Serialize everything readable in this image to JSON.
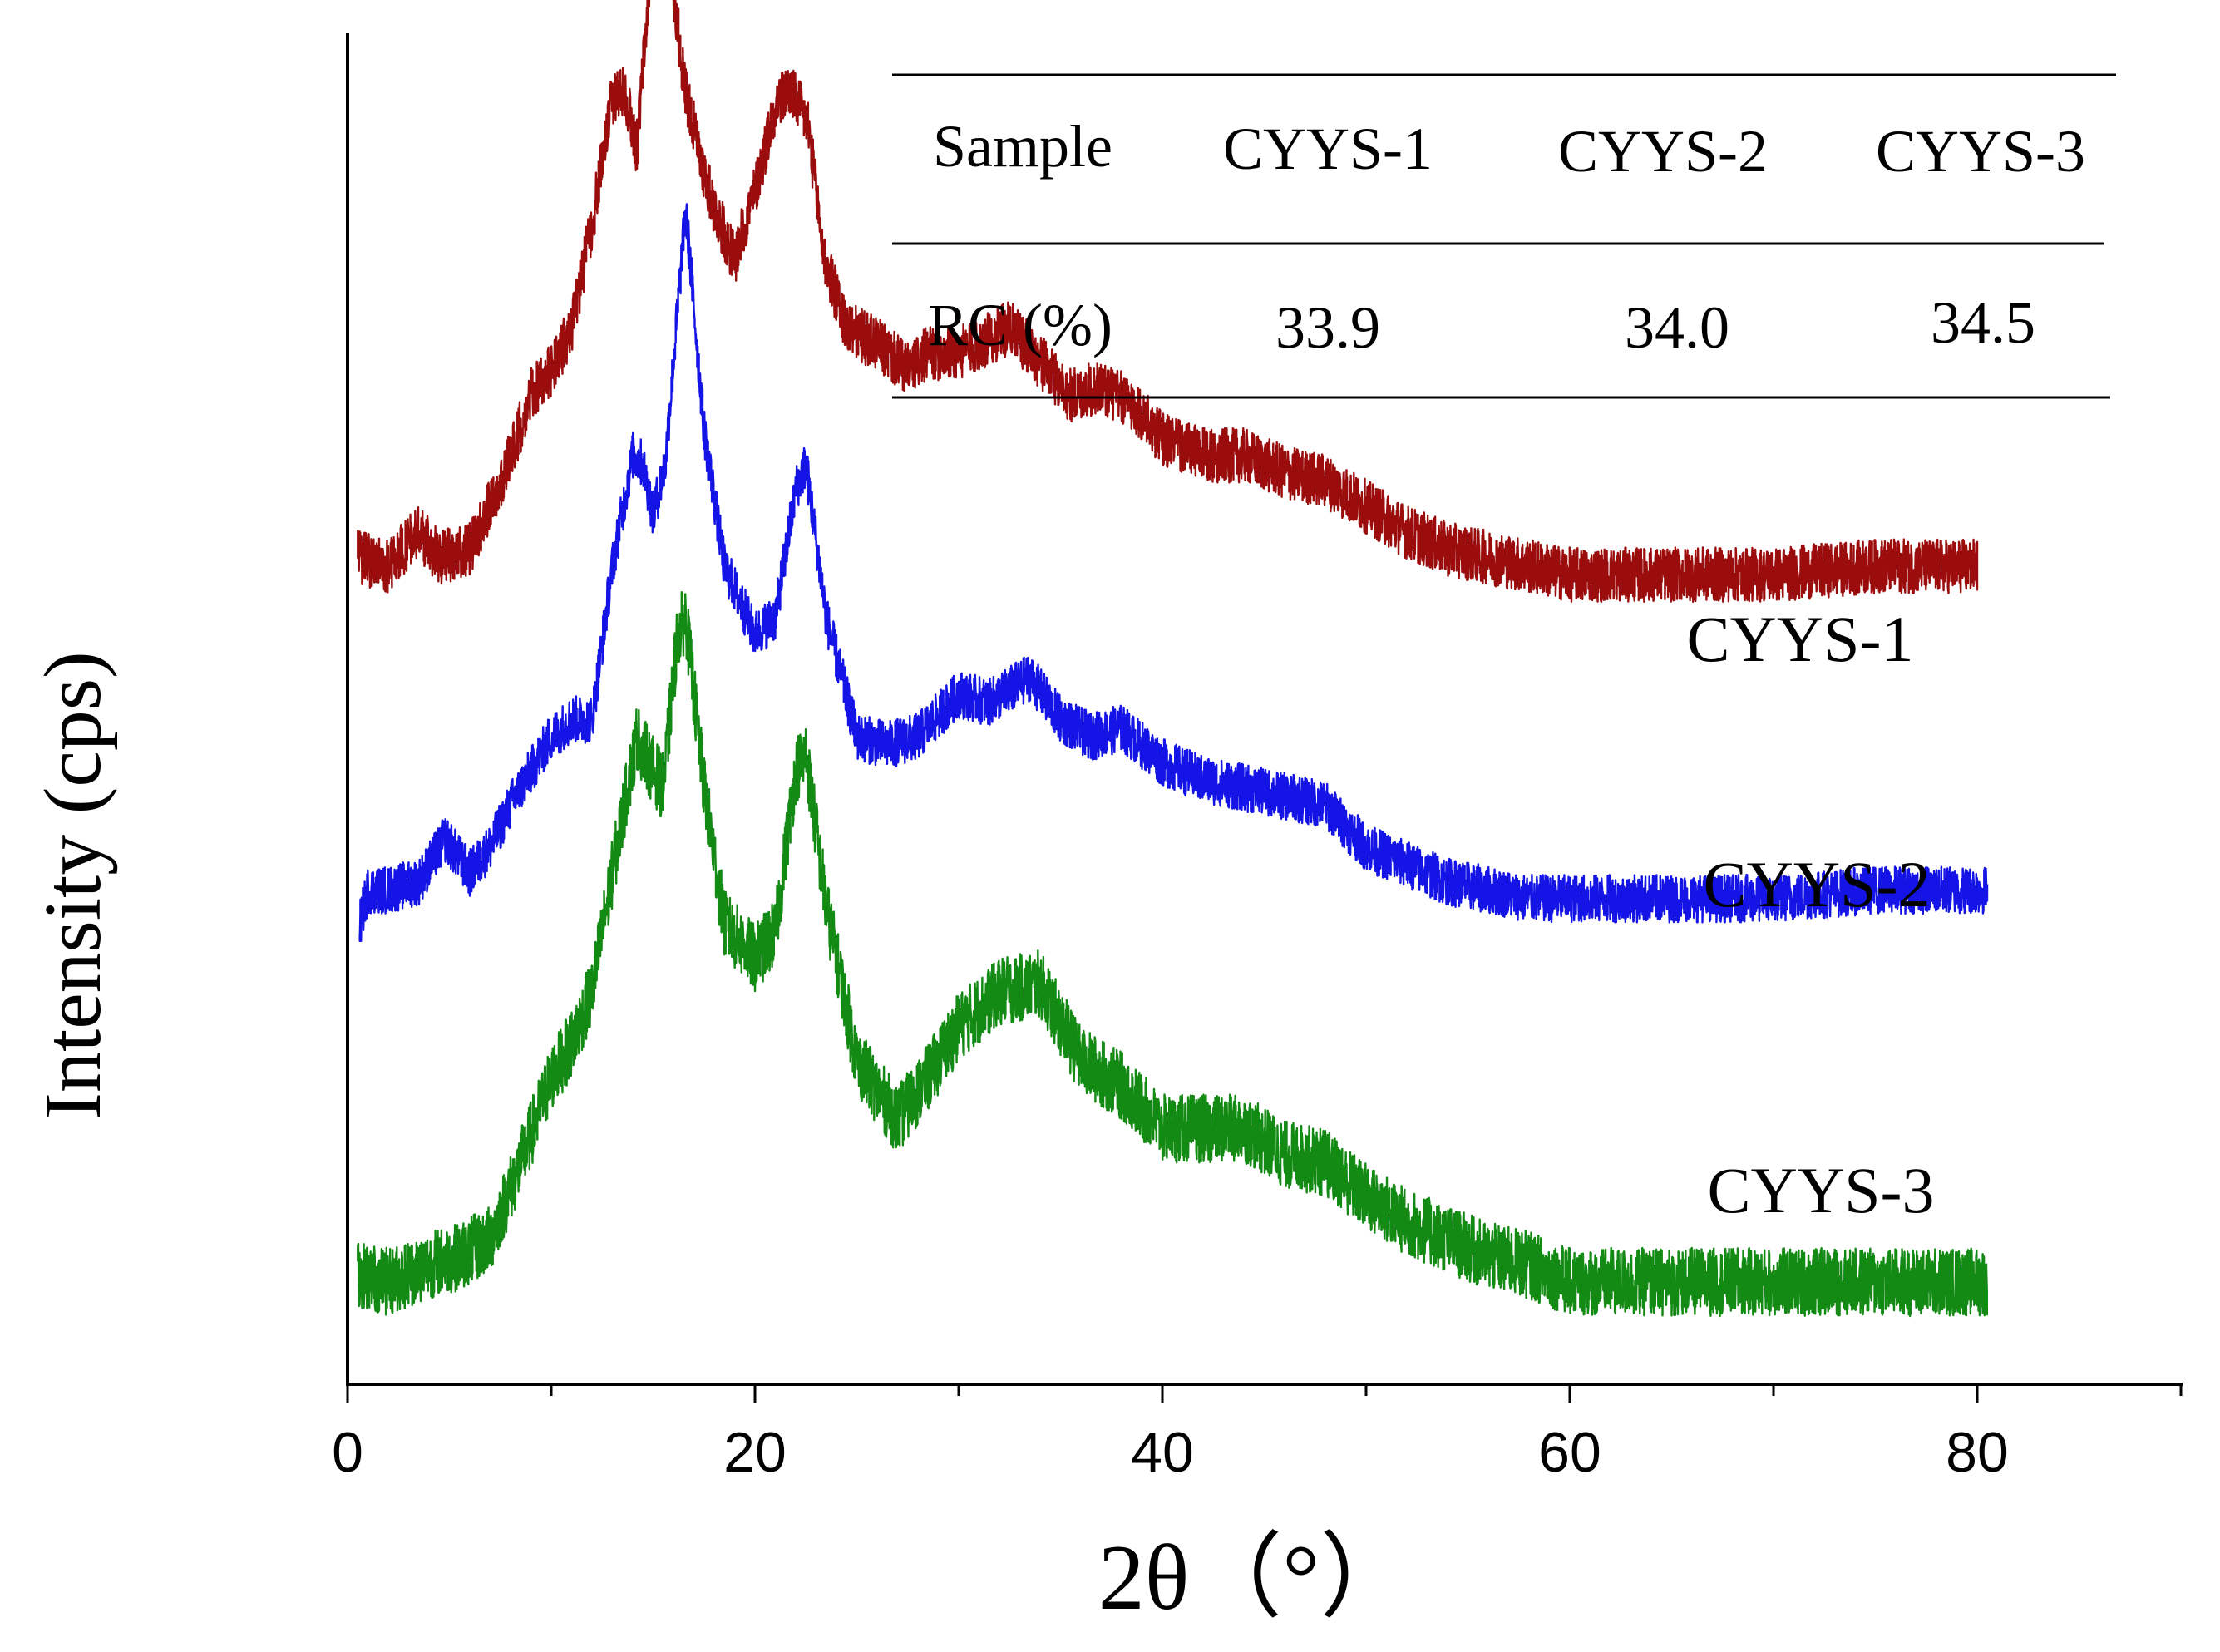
{
  "chart_data": {
    "type": "line",
    "title": "",
    "xlabel": "2θ（°）",
    "ylabel": "Intensity (cps)",
    "xlim": [
      0,
      90
    ],
    "ylim": [
      0,
      100
    ],
    "y_ticks_shown": false,
    "x_ticks": [
      0,
      20,
      40,
      60,
      80
    ],
    "x_tick_labels": [
      "0",
      "20",
      "40",
      "60",
      "80"
    ],
    "x_minor_step": 10,
    "legend": "inline labels at right end of each trace",
    "series": [
      {
        "name": "CYYS-1",
        "color": "#9b0d0d",
        "offset": 48,
        "noise": 1.6,
        "x": [
          0.5,
          2,
          3.5,
          4.5,
          6,
          7,
          8,
          9,
          10,
          11,
          12,
          13,
          13.6,
          14.2,
          15,
          15.3,
          15.8,
          16.5,
          17.3,
          18,
          19,
          20,
          21,
          21.7,
          22.6,
          23.4,
          24.5,
          26,
          27.5,
          28.5,
          30,
          31,
          32.5,
          34,
          35.5,
          37,
          38.5,
          40,
          42,
          44,
          46,
          48,
          50,
          52,
          54,
          56,
          58,
          60,
          62,
          65,
          70,
          75,
          80
        ],
        "y": [
          0.5,
          0,
          2,
          0.5,
          1,
          3.5,
          6.5,
          10,
          11.5,
          14,
          20,
          27.5,
          28,
          24.5,
          37,
          40,
          36,
          28.5,
          24,
          21,
          18,
          22,
          27,
          28,
          26,
          18,
          14,
          13,
          11.5,
          12.5,
          12.5,
          13,
          14,
          12,
          10,
          10.5,
          9.5,
          7.5,
          6.5,
          6.5,
          5.5,
          5,
          3.5,
          2,
          1,
          0.5,
          0,
          -0.5,
          -0.5,
          -0.5,
          -0.5,
          0,
          0
        ]
      },
      {
        "name": "CYYS-2",
        "color": "#1414e6",
        "offset": 29,
        "noise": 1.4,
        "x": [
          0.6,
          1,
          2,
          3.5,
          4.8,
          6,
          7,
          8,
          9,
          10,
          11,
          12,
          13,
          14,
          14.5,
          15,
          15.6,
          16.2,
          16.6,
          17.5,
          18.5,
          20,
          21,
          22,
          22.5,
          23.5,
          25,
          26.5,
          28,
          30,
          31.5,
          33.5,
          35,
          36.5,
          38,
          40,
          42,
          44,
          46,
          48,
          50,
          52,
          54,
          56,
          58,
          60,
          65,
          70,
          75,
          80.5
        ],
        "y": [
          -2,
          0,
          0,
          0.5,
          3,
          1,
          2.5,
          5,
          7,
          9,
          10,
          10,
          19,
          25.5,
          25,
          22,
          25,
          34,
          40,
          27,
          19,
          15,
          16,
          23.5,
          25,
          16,
          9,
          8.5,
          9,
          11.5,
          11,
          12.5,
          10,
          9,
          9.5,
          7.5,
          6.5,
          6,
          5.5,
          5,
          2.5,
          1.5,
          0.5,
          0,
          -0.5,
          -0.5,
          -0.5,
          -0.5,
          0,
          0
        ]
      },
      {
        "name": "CYYS-3",
        "color": "#138a13",
        "offset": 6,
        "noise": 2.0,
        "x": [
          0.5,
          2,
          4,
          5.5,
          7,
          8.5,
          10,
          11,
          12,
          13,
          13.6,
          14.2,
          14.8,
          15.5,
          16.2,
          16.6,
          17.5,
          18.5,
          20,
          21,
          22,
          22.5,
          23.5,
          25,
          27,
          28.5,
          30,
          32,
          34,
          36,
          38,
          40,
          42,
          44,
          46,
          48,
          50,
          52,
          54,
          56,
          58,
          60,
          65,
          70,
          75,
          80.5
        ],
        "y": [
          0.5,
          0,
          1,
          1.5,
          2.5,
          7,
          12,
          14,
          17,
          24,
          28,
          32,
          30.5,
          29,
          38,
          39,
          29,
          21,
          19,
          20.5,
          30,
          31,
          22,
          13,
          9.5,
          12,
          15,
          17,
          17.5,
          13,
          11.5,
          9,
          9,
          9,
          7.5,
          7,
          5,
          3.5,
          2.5,
          1.5,
          1,
          0,
          0,
          0,
          0,
          0
        ]
      }
    ],
    "annotations": [
      {
        "text": "CYYS-1",
        "x": 80,
        "series": "CYYS-1"
      },
      {
        "text": "CYYS-2",
        "x": 80.5,
        "series": "CYYS-2"
      },
      {
        "text": "CYYS-3",
        "x": 80.5,
        "series": "CYYS-3"
      }
    ],
    "inset_table": {
      "headers": [
        "Sample",
        "CYYS-1",
        "CYYS-2",
        "CYYS-3"
      ],
      "rows": [
        [
          "RC (%)",
          "33.9",
          "34.0",
          "34.5"
        ]
      ]
    }
  }
}
